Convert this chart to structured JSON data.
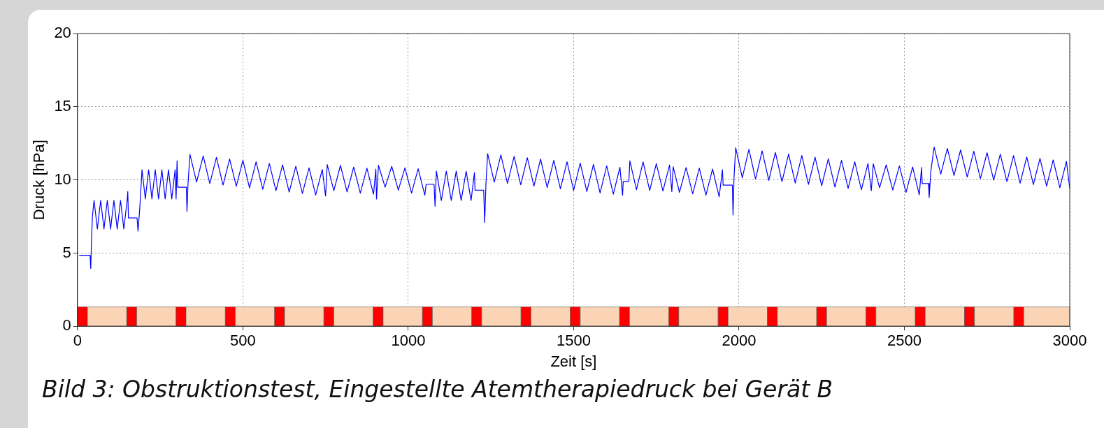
{
  "chart_data": {
    "type": "line",
    "xlabel": "Zeit [s]",
    "ylabel": "Druck [hPa]",
    "xlim": [
      0,
      3000
    ],
    "ylim": [
      0,
      20
    ],
    "xticks": [
      0,
      500,
      1000,
      1500,
      2000,
      2500,
      3000
    ],
    "yticks": [
      0,
      5,
      10,
      15,
      20
    ],
    "grid": true,
    "legend": false,
    "annotations": [
      "Bild 3: Obstruktionstest, Eingestellte Atemtherapiedruck bei Gerät B"
    ],
    "series": [
      {
        "color": "#0000ff",
        "x": [
          5,
          38,
          40,
          42,
          45,
          50,
          60,
          70,
          80,
          90,
          100,
          110,
          120,
          130,
          140,
          150,
          152,
          154,
          180,
          183,
          188,
          195,
          205,
          215,
          225,
          235,
          245,
          255,
          265,
          275,
          285,
          295,
          298,
          301,
          303,
          329,
          331,
          334,
          340,
          360,
          380,
          400,
          420,
          440,
          460,
          480,
          500,
          520,
          540,
          560,
          580,
          600,
          620,
          640,
          660,
          680,
          700,
          720,
          740,
          750,
          755,
          775,
          795,
          815,
          835,
          855,
          875,
          895,
          902,
          904,
          910,
          930,
          950,
          970,
          990,
          1010,
          1030,
          1050,
          1054,
          1078,
          1081,
          1085,
          1100,
          1115,
          1130,
          1145,
          1160,
          1175,
          1190,
          1200,
          1202,
          1228,
          1231,
          1235,
          1240,
          1260,
          1280,
          1300,
          1320,
          1340,
          1360,
          1380,
          1400,
          1420,
          1440,
          1460,
          1480,
          1500,
          1520,
          1540,
          1560,
          1580,
          1600,
          1620,
          1640,
          1648,
          1650,
          1667,
          1670,
          1690,
          1710,
          1730,
          1750,
          1770,
          1790,
          1797,
          1801,
          1820,
          1840,
          1860,
          1880,
          1900,
          1920,
          1940,
          1950,
          1952,
          1980,
          1982,
          1985,
          1990,
          2010,
          2030,
          2050,
          2070,
          2090,
          2110,
          2130,
          2150,
          2170,
          2190,
          2210,
          2230,
          2250,
          2270,
          2290,
          2310,
          2330,
          2350,
          2370,
          2390,
          2400,
          2406,
          2425,
          2445,
          2465,
          2485,
          2505,
          2525,
          2545,
          2552,
          2554,
          2573,
          2575,
          2580,
          2590,
          2610,
          2630,
          2650,
          2670,
          2690,
          2710,
          2730,
          2750,
          2770,
          2790,
          2810,
          2830,
          2850,
          2870,
          2890,
          2910,
          2930,
          2950,
          2970,
          2990,
          3000
        ],
        "values": [
          4.85,
          4.85,
          3.95,
          5.6,
          7.5,
          8.6,
          6.65,
          8.6,
          6.65,
          8.6,
          6.65,
          8.6,
          6.65,
          8.6,
          6.65,
          8.6,
          9.2,
          7.4,
          7.4,
          6.5,
          8.0,
          10.7,
          8.7,
          10.7,
          8.7,
          10.7,
          8.7,
          10.7,
          8.7,
          10.7,
          8.7,
          10.7,
          8.7,
          11.3,
          9.5,
          9.5,
          7.85,
          9.7,
          11.75,
          9.85,
          11.64,
          9.75,
          11.54,
          9.65,
          11.44,
          9.56,
          11.34,
          9.46,
          11.24,
          9.36,
          11.13,
          9.26,
          11.03,
          9.17,
          10.93,
          9.07,
          10.83,
          8.97,
          10.72,
          8.9,
          11.05,
          9.26,
          11.0,
          9.18,
          10.88,
          9.1,
          10.8,
          9.02,
          10.75,
          8.7,
          11.0,
          9.5,
          10.93,
          9.3,
          10.83,
          9.1,
          10.77,
          8.95,
          9.7,
          9.7,
          8.2,
          10.6,
          8.6,
          10.6,
          8.6,
          10.6,
          8.6,
          10.6,
          8.6,
          10.5,
          9.3,
          9.3,
          7.1,
          9.8,
          11.8,
          9.85,
          11.71,
          9.76,
          11.61,
          9.67,
          11.52,
          9.57,
          11.43,
          9.48,
          11.34,
          9.39,
          11.24,
          9.29,
          11.15,
          9.2,
          11.06,
          9.11,
          10.96,
          9.02,
          10.87,
          8.95,
          9.9,
          9.9,
          11.3,
          9.33,
          11.23,
          9.28,
          11.11,
          9.24,
          11.02,
          9.2,
          10.9,
          9.15,
          10.85,
          9.05,
          10.8,
          8.95,
          10.75,
          8.85,
          10.7,
          9.65,
          9.65,
          7.6,
          10.2,
          12.2,
          10.15,
          12.09,
          10.06,
          11.99,
          9.97,
          11.88,
          9.88,
          11.77,
          9.79,
          11.67,
          9.69,
          11.56,
          9.6,
          11.45,
          9.51,
          11.34,
          9.42,
          11.24,
          9.33,
          11.13,
          9.26,
          11.1,
          9.47,
          11.03,
          9.31,
          10.96,
          9.14,
          10.89,
          8.98,
          10.85,
          9.75,
          9.75,
          8.8,
          10.6,
          12.25,
          10.4,
          12.15,
          10.3,
          12.05,
          10.19,
          11.96,
          10.09,
          11.86,
          9.99,
          11.76,
          9.88,
          11.66,
          9.78,
          11.57,
          9.68,
          11.47,
          9.58,
          11.37,
          9.47,
          11.27,
          9.42
        ]
      }
    ],
    "bands": [
      {
        "axis": "x",
        "from": 0,
        "to": 30,
        "color": "#ff0000"
      },
      {
        "axis": "x",
        "from": 30,
        "to": 149,
        "color": "#fad4b4"
      },
      {
        "axis": "x",
        "from": 149,
        "to": 179,
        "color": "#ff0000"
      },
      {
        "axis": "x",
        "from": 179,
        "to": 298,
        "color": "#fad4b4"
      },
      {
        "axis": "x",
        "from": 298,
        "to": 328,
        "color": "#ff0000"
      },
      {
        "axis": "x",
        "from": 328,
        "to": 447,
        "color": "#fad4b4"
      },
      {
        "axis": "x",
        "from": 447,
        "to": 477,
        "color": "#ff0000"
      },
      {
        "axis": "x",
        "from": 477,
        "to": 596,
        "color": "#fad4b4"
      },
      {
        "axis": "x",
        "from": 596,
        "to": 626,
        "color": "#ff0000"
      },
      {
        "axis": "x",
        "from": 626,
        "to": 745,
        "color": "#fad4b4"
      },
      {
        "axis": "x",
        "from": 745,
        "to": 775,
        "color": "#ff0000"
      },
      {
        "axis": "x",
        "from": 775,
        "to": 894,
        "color": "#fad4b4"
      },
      {
        "axis": "x",
        "from": 894,
        "to": 924,
        "color": "#ff0000"
      },
      {
        "axis": "x",
        "from": 924,
        "to": 1043,
        "color": "#fad4b4"
      },
      {
        "axis": "x",
        "from": 1043,
        "to": 1073,
        "color": "#ff0000"
      },
      {
        "axis": "x",
        "from": 1073,
        "to": 1192,
        "color": "#fad4b4"
      },
      {
        "axis": "x",
        "from": 1192,
        "to": 1222,
        "color": "#ff0000"
      },
      {
        "axis": "x",
        "from": 1222,
        "to": 1341,
        "color": "#fad4b4"
      },
      {
        "axis": "x",
        "from": 1341,
        "to": 1371,
        "color": "#ff0000"
      },
      {
        "axis": "x",
        "from": 1371,
        "to": 1490,
        "color": "#fad4b4"
      },
      {
        "axis": "x",
        "from": 1490,
        "to": 1520,
        "color": "#ff0000"
      },
      {
        "axis": "x",
        "from": 1520,
        "to": 1639,
        "color": "#fad4b4"
      },
      {
        "axis": "x",
        "from": 1639,
        "to": 1669,
        "color": "#ff0000"
      },
      {
        "axis": "x",
        "from": 1669,
        "to": 1788,
        "color": "#fad4b4"
      },
      {
        "axis": "x",
        "from": 1788,
        "to": 1818,
        "color": "#ff0000"
      },
      {
        "axis": "x",
        "from": 1818,
        "to": 1937,
        "color": "#fad4b4"
      },
      {
        "axis": "x",
        "from": 1937,
        "to": 1967,
        "color": "#ff0000"
      },
      {
        "axis": "x",
        "from": 1967,
        "to": 2086,
        "color": "#fad4b4"
      },
      {
        "axis": "x",
        "from": 2086,
        "to": 2116,
        "color": "#ff0000"
      },
      {
        "axis": "x",
        "from": 2116,
        "to": 2235,
        "color": "#fad4b4"
      },
      {
        "axis": "x",
        "from": 2235,
        "to": 2265,
        "color": "#ff0000"
      },
      {
        "axis": "x",
        "from": 2265,
        "to": 2384,
        "color": "#fad4b4"
      },
      {
        "axis": "x",
        "from": 2384,
        "to": 2414,
        "color": "#ff0000"
      },
      {
        "axis": "x",
        "from": 2414,
        "to": 2533,
        "color": "#fad4b4"
      },
      {
        "axis": "x",
        "from": 2533,
        "to": 2563,
        "color": "#ff0000"
      },
      {
        "axis": "x",
        "from": 2563,
        "to": 2682,
        "color": "#fad4b4"
      },
      {
        "axis": "x",
        "from": 2682,
        "to": 2712,
        "color": "#ff0000"
      },
      {
        "axis": "x",
        "from": 2712,
        "to": 2831,
        "color": "#fad4b4"
      },
      {
        "axis": "x",
        "from": 2831,
        "to": 2861,
        "color": "#ff0000"
      },
      {
        "axis": "x",
        "from": 2861,
        "to": 3000,
        "color": "#fad4b4"
      }
    ]
  }
}
